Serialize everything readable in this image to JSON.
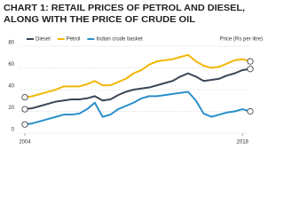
{
  "chart_data": {
    "type": "line",
    "title": [
      "CHART 1: RETAIL PRICES OF PETROL AND DIESEL,",
      "ALONG WITH THE PRICE OF CRUDE OIL"
    ],
    "y_label": "Price (Rs per litre)",
    "x": [
      2004,
      2004.5,
      2005,
      2005.5,
      2006,
      2006.5,
      2007,
      2007.5,
      2008,
      2008.5,
      2009,
      2009.5,
      2010,
      2010.5,
      2011,
      2011.5,
      2012,
      2012.5,
      2013,
      2013.5,
      2014,
      2014.5,
      2015,
      2015.5,
      2016,
      2016.5,
      2017,
      2017.5,
      2018,
      2018.5
    ],
    "series": [
      {
        "name": "Diesel",
        "color": "#3b4656",
        "values": [
          22,
          23,
          25,
          27,
          29,
          30,
          31,
          31,
          32,
          34,
          30,
          31,
          35,
          38,
          40,
          41,
          42,
          44,
          46,
          48,
          52,
          55,
          52,
          48,
          49,
          50,
          53,
          55,
          58,
          59
        ]
      },
      {
        "name": "Petrol",
        "color": "#f2b705",
        "values": [
          33,
          34,
          36,
          38,
          40,
          43,
          43,
          43,
          45,
          48,
          44,
          44,
          47,
          50,
          55,
          58,
          63,
          66,
          67,
          68,
          70,
          72,
          66,
          62,
          60,
          61,
          64,
          67,
          68,
          66
        ]
      },
      {
        "name": "Indian crude basket",
        "color": "#2a8fc9",
        "values": [
          8,
          9,
          11,
          13,
          15,
          17,
          17,
          18,
          22,
          28,
          15,
          17,
          22,
          25,
          28,
          32,
          34,
          34,
          35,
          36,
          37,
          38,
          30,
          18,
          15,
          17,
          19,
          20,
          22,
          20
        ]
      }
    ],
    "xlim": [
      2004,
      2018.5
    ],
    "xticks": [
      2004,
      2018
    ],
    "ylim": [
      0,
      80
    ],
    "yticks": [
      0,
      20,
      40,
      60,
      80
    ],
    "grid": true,
    "legend": "top"
  }
}
